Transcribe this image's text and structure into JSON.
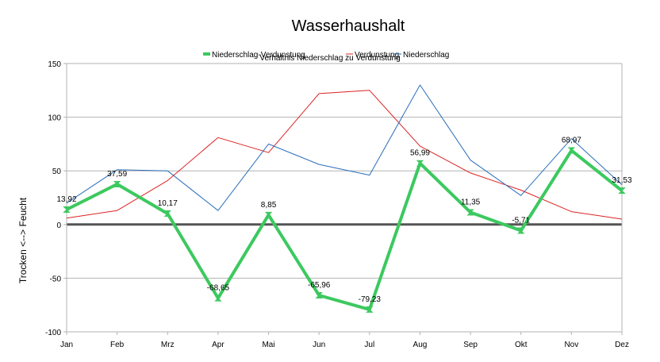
{
  "chart_data": {
    "type": "line",
    "title": "Wasserhaushalt",
    "subtitle": "Verhältnis Niederschlag zu Verdunstung",
    "ylabel": "Trocken  <-->  Feucht",
    "xlabel": "",
    "categories": [
      "Jan",
      "Feb",
      "Mrz",
      "Apr",
      "Mai",
      "Jun",
      "Jul",
      "Aug",
      "Sep",
      "Okt",
      "Nov",
      "Dez"
    ],
    "ylim": [
      -100,
      150
    ],
    "yticks": [
      "150",
      "100",
      "50",
      "0",
      "-50",
      "-100"
    ],
    "grid": true,
    "legend_position": "top",
    "series": [
      {
        "name": "Niederschlag-Verdunstung",
        "color": "#3cc95f",
        "values": [
          13.92,
          37.59,
          10.17,
          -68.65,
          8.85,
          -65.96,
          -79.23,
          56.99,
          11.35,
          -5.71,
          68.97,
          31.53
        ],
        "data_labels": [
          "13,92",
          "37,59",
          "10,17",
          "-68,65",
          "8,85",
          "-65,96",
          "-79,23",
          "56,99",
          "11,35",
          "-5,71",
          "68,97",
          "31,53"
        ]
      },
      {
        "name": "Verdunstung",
        "color": "#dd2222",
        "values": [
          6,
          13,
          41,
          81,
          67,
          122,
          125,
          73,
          48,
          32,
          12,
          5
        ]
      },
      {
        "name": "Niederschlag",
        "color": "#2a6ebb",
        "values": [
          20,
          51,
          50,
          13,
          75,
          56,
          46,
          130,
          60,
          27,
          80,
          37
        ]
      }
    ]
  }
}
